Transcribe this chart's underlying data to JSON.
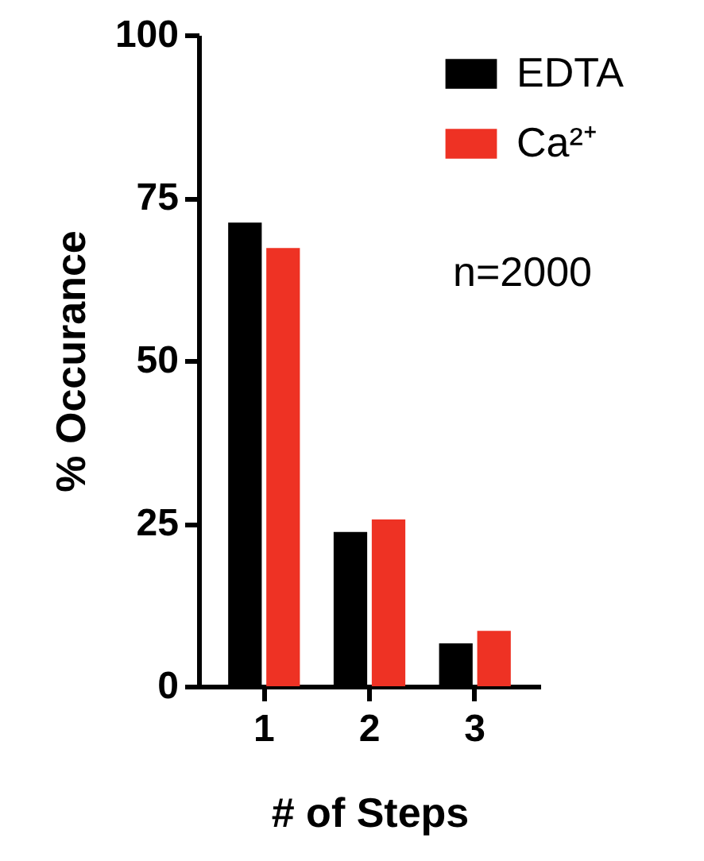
{
  "chart_data": {
    "type": "bar",
    "xlabel": "# of Steps",
    "ylabel": "% Occurance",
    "categories": [
      "1",
      "2",
      "3"
    ],
    "series": [
      {
        "name": "EDTA",
        "color": "#000000",
        "values": [
          71.2,
          23.7,
          6.6
        ]
      },
      {
        "name": "Ca²⁺",
        "color": "#ee3224",
        "values": [
          67.3,
          25.6,
          8.5
        ]
      }
    ],
    "ylim": [
      0,
      100
    ],
    "yticks": [
      0,
      25,
      50,
      75,
      100
    ],
    "grid": false,
    "legend": "top right",
    "annotations": [
      "n=2000"
    ]
  }
}
